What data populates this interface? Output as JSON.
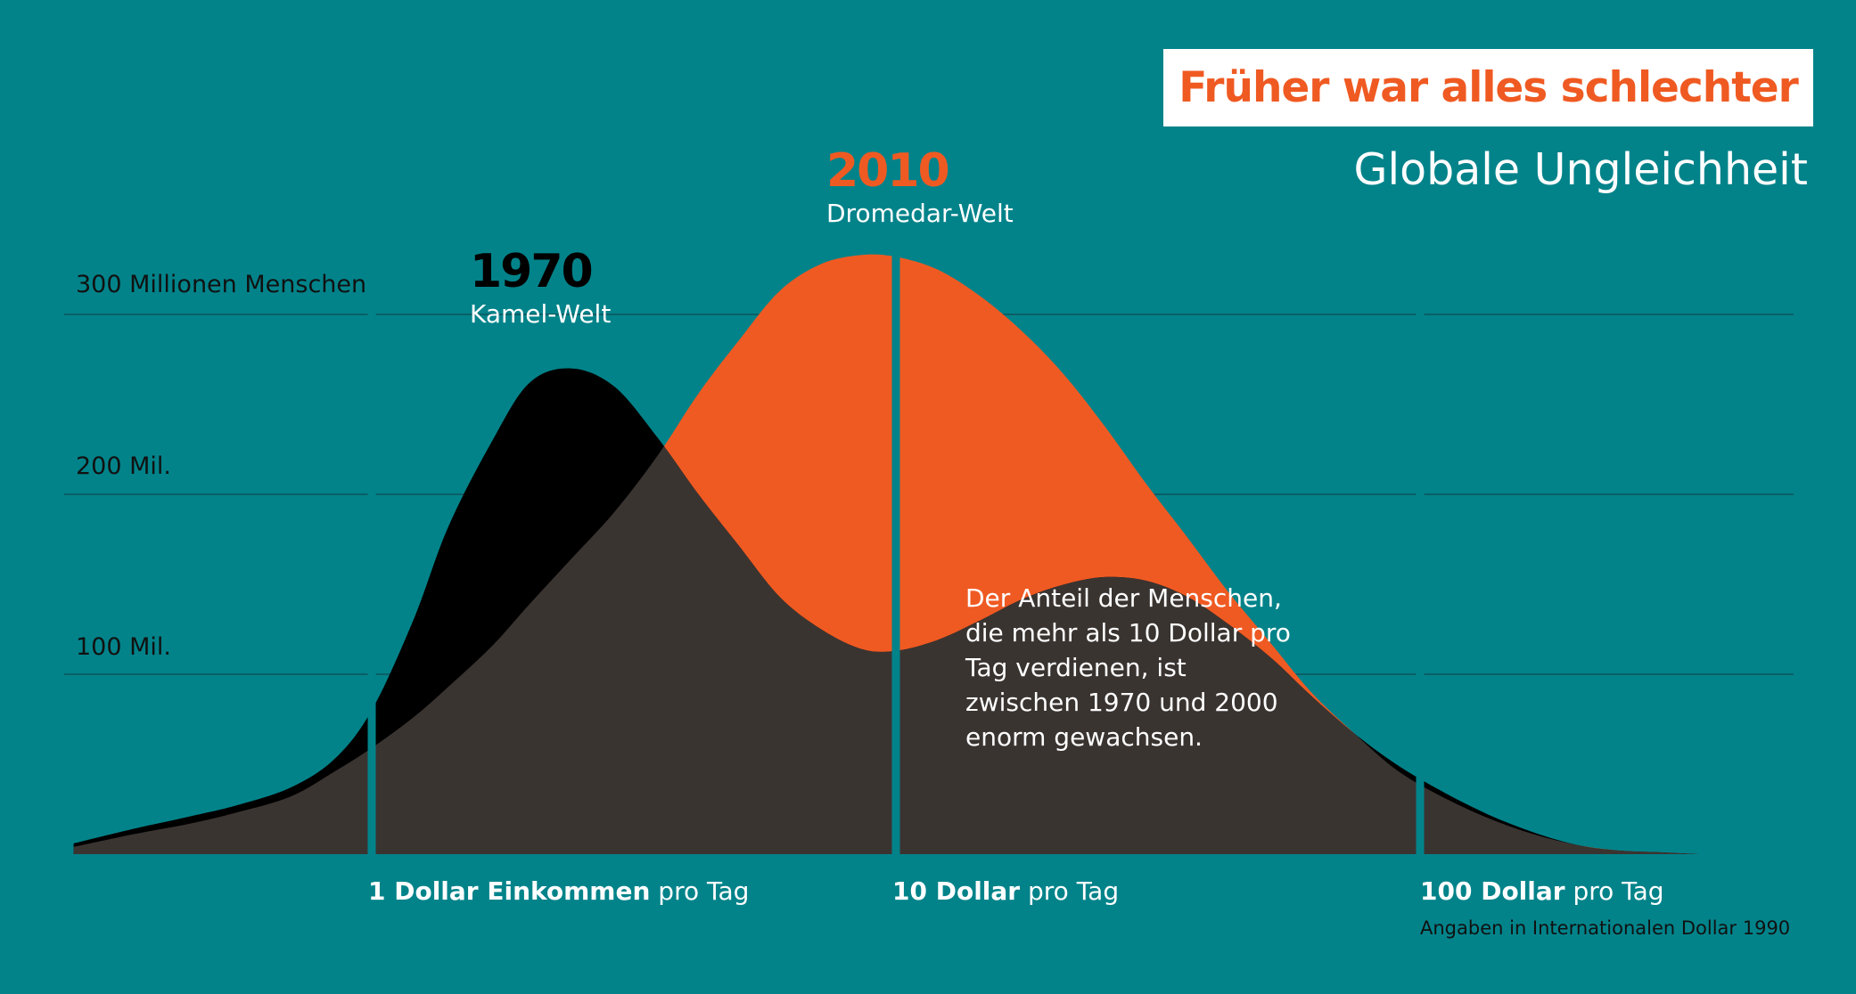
{
  "header": {
    "title": "Früher war alles schlechter",
    "subtitle": "Globale Ungleichheit"
  },
  "colors": {
    "background": "#02838a",
    "series_1970": "#000000",
    "series_2010": "#ef5a22",
    "overlap": "#3a3431",
    "title": "#ef5a22"
  },
  "labels": {
    "y300": "300 Millionen Menschen",
    "y200": "200 Mil.",
    "y100": "100 Mil.",
    "s1970_year": "1970",
    "s1970_name": "Kamel-Welt",
    "s2010_year": "2010",
    "s2010_name": "Dromedar-Welt",
    "annotation": "Der Anteil der Menschen, die mehr als 10 Dollar pro Tag verdienen, ist zwischen 1970 und 2000 enorm gewachsen.",
    "x1_bold": "1 Dollar Einkommen",
    "x1_rest": " pro Tag",
    "x10_bold": "10 Dollar",
    "x10_rest": " pro Tag",
    "x100_bold": "100 Dollar",
    "x100_rest": " pro Tag",
    "note": "Angaben in Internationalen Dollar 1990"
  },
  "chart_data": {
    "type": "area",
    "x_scale": "log",
    "x_unit": "Dollar pro Tag",
    "x_ticks": [
      1,
      10,
      100
    ],
    "xlim": [
      0.27,
      340
    ],
    "ylim": [
      0,
      300
    ],
    "y_unit": "Millionen Menschen",
    "y_ticks": [
      100,
      200,
      300
    ],
    "grid": true,
    "x": [
      0.27,
      0.35,
      0.45,
      0.55,
      0.7,
      0.85,
      1.0,
      1.2,
      1.4,
      1.7,
      2.0,
      2.4,
      2.9,
      3.5,
      4.2,
      5.0,
      6.0,
      7.2,
      8.6,
      10,
      12,
      14.5,
      17.5,
      21,
      25,
      30,
      36,
      43,
      52,
      62,
      75,
      90,
      110,
      135,
      165,
      200,
      240,
      290,
      340
    ],
    "series": [
      {
        "name": "1970",
        "values": [
          6,
          14,
          21,
          27,
          37,
          53,
          80,
          130,
          182,
          230,
          262,
          270,
          260,
          232,
          200,
          172,
          143,
          125,
          114,
          113,
          119,
          130,
          142,
          150,
          154,
          152,
          143,
          128,
          109,
          88,
          67,
          50,
          35,
          22,
          12,
          5,
          2,
          1,
          0
        ]
      },
      {
        "name": "2010",
        "values": [
          4,
          11,
          17,
          23,
          32,
          46,
          59,
          76,
          93,
          116,
          139,
          164,
          190,
          221,
          256,
          285,
          313,
          328,
          333,
          332,
          325,
          310,
          290,
          266,
          238,
          206,
          176,
          146,
          117,
          90,
          67,
          47,
          32,
          20,
          11,
          5,
          2,
          1,
          0
        ]
      }
    ]
  }
}
